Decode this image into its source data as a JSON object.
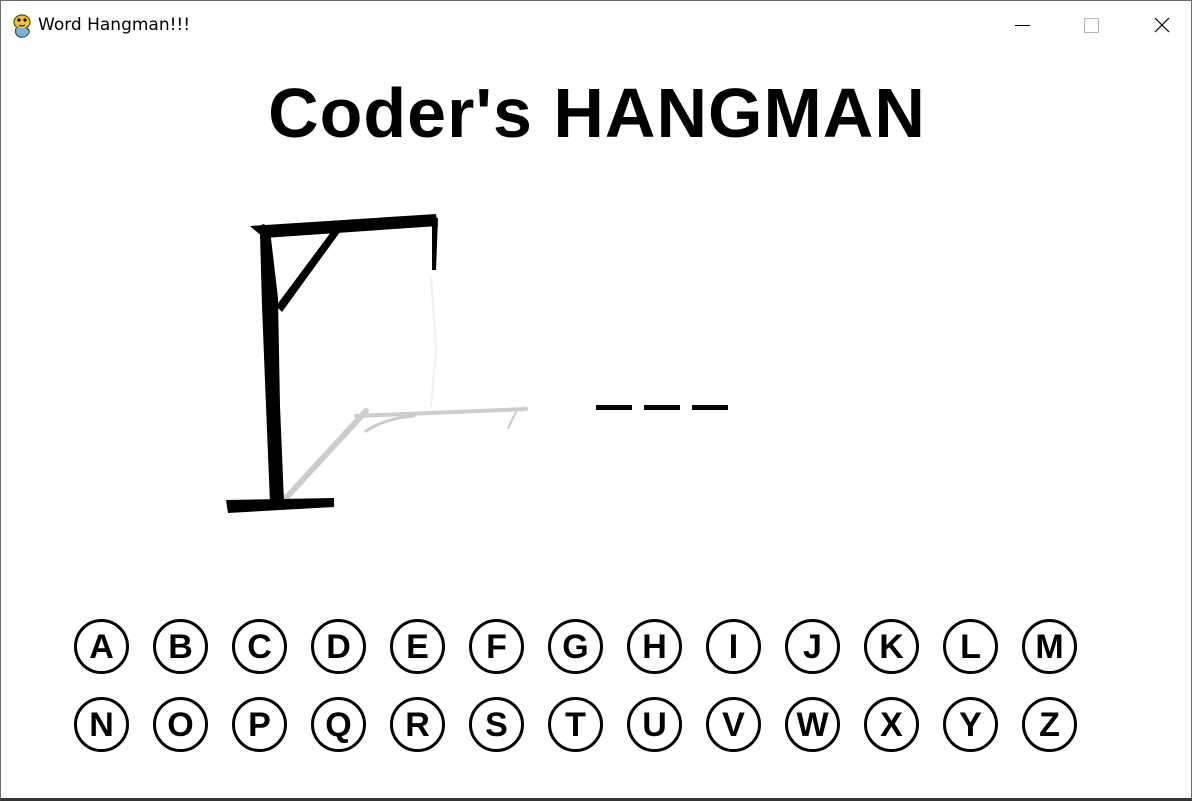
{
  "window": {
    "title": "Word Hangman!!!",
    "app_icon": "python-snake-icon",
    "controls": [
      "minimize-icon",
      "maximize-icon",
      "close-icon"
    ]
  },
  "game": {
    "title": "Coder's HANGMAN",
    "word_blanks": [
      "",
      "",
      ""
    ],
    "wrong_guesses_drawn": 0
  },
  "keyboard": {
    "rows": [
      [
        "A",
        "B",
        "C",
        "D",
        "E",
        "F",
        "G",
        "H",
        "I",
        "J",
        "K",
        "L",
        "M"
      ],
      [
        "N",
        "O",
        "P",
        "Q",
        "R",
        "S",
        "T",
        "U",
        "V",
        "W",
        "X",
        "Y",
        "Z"
      ]
    ]
  },
  "colors": {
    "ink": "#000000",
    "background": "#ffffff",
    "faint_ghost": "#c8c8c8"
  }
}
